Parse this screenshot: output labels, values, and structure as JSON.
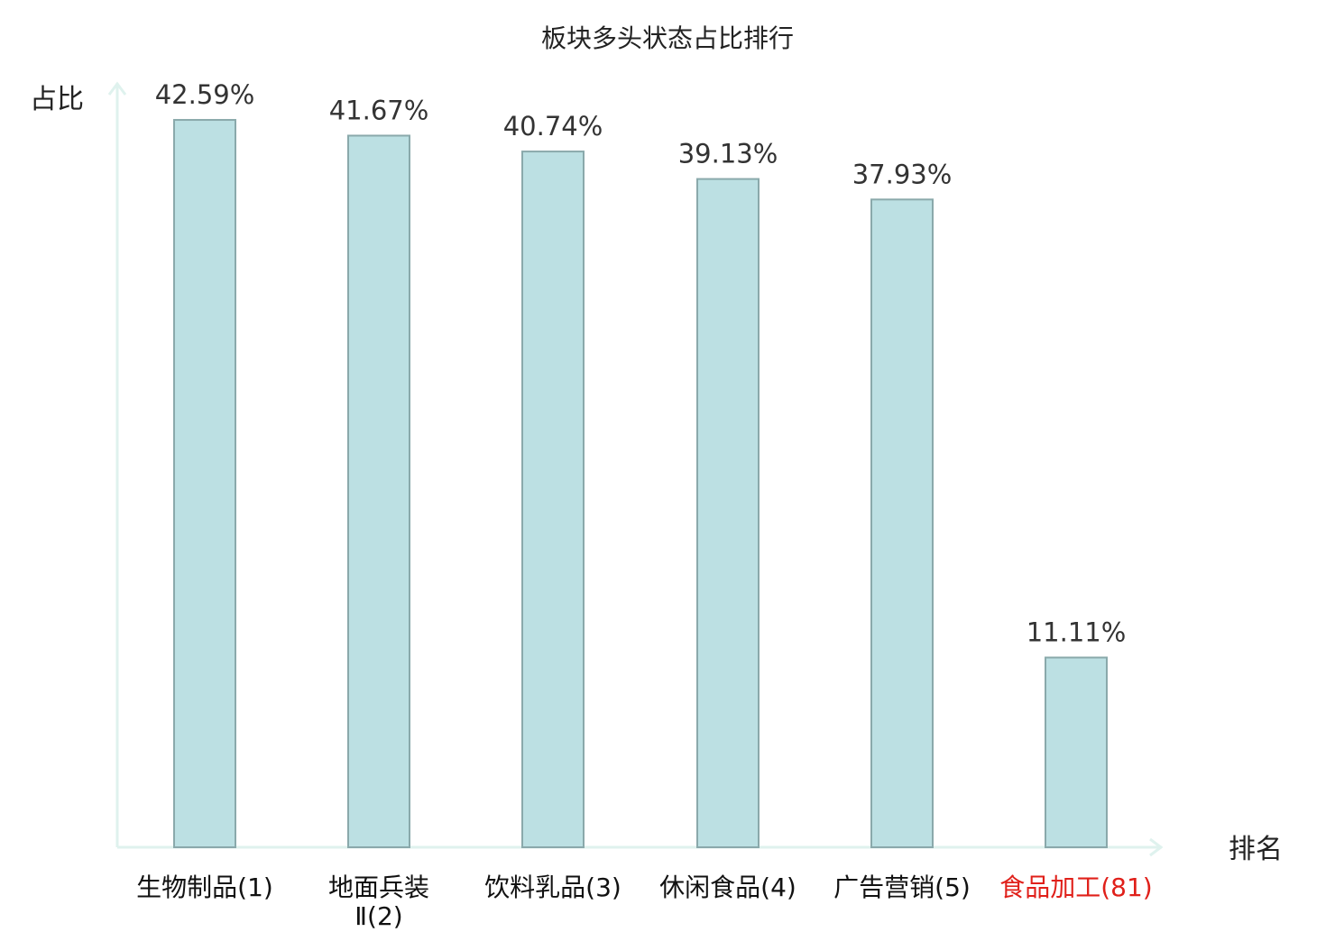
{
  "colors": {
    "bar_fill": "#bce0e3",
    "bar_stroke": "#8aa9ab",
    "axis": "#dff2ee",
    "text_dark": "#333333",
    "title_text": "#222222",
    "highlight": "#e0201a",
    "background": "#ffffff"
  },
  "chart_data": {
    "type": "bar",
    "title": "板块多头状态占比排行",
    "ylabel": "占比",
    "xlabel": "排名",
    "ylim": [
      0,
      47.5
    ],
    "grid": false,
    "legend": "none",
    "categories": [
      {
        "label": [
          "生物制品(1)"
        ],
        "highlight": false
      },
      {
        "label": [
          "地面兵装",
          "Ⅱ(2)"
        ],
        "highlight": false
      },
      {
        "label": [
          "饮料乳品(3)"
        ],
        "highlight": false
      },
      {
        "label": [
          "休闲食品(4)"
        ],
        "highlight": false
      },
      {
        "label": [
          "广告营销(5)"
        ],
        "highlight": false
      },
      {
        "label": [
          "食品加工(81)"
        ],
        "highlight": true
      }
    ],
    "values": [
      42.59,
      41.67,
      40.74,
      39.13,
      37.93,
      11.11
    ],
    "value_labels": [
      "42.59%",
      "41.67%",
      "40.74%",
      "39.13%",
      "37.93%",
      "11.11%"
    ]
  }
}
